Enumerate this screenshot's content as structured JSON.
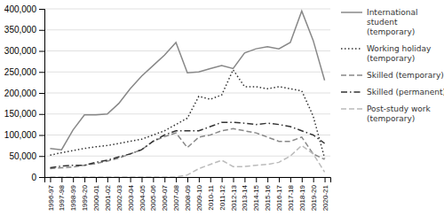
{
  "chart_data": {
    "type": "line",
    "categories": [
      "1996-97",
      "1997-98",
      "1998-99",
      "1999-20",
      "2000-01",
      "2001-02",
      "2002-03",
      "2003-04",
      "2004-05",
      "2005-06",
      "2006-07",
      "2007-08",
      "2008-09",
      "2009-10",
      "2010-11",
      "2011-12",
      "2012-13",
      "2013-14",
      "2014-15",
      "2015-16",
      "2016-17",
      "2017-18",
      "2018-19",
      "2019-20",
      "2020-21"
    ],
    "series": [
      {
        "name": "International\nstudent\n(temporary)",
        "color": "#888888",
        "line_style": "solid",
        "values": [
          68000,
          65000,
          112000,
          148000,
          148000,
          150000,
          175000,
          210000,
          240000,
          265000,
          290000,
          320000,
          248000,
          250000,
          258000,
          265000,
          258000,
          295000,
          305000,
          310000,
          305000,
          320000,
          395000,
          325000,
          230000
        ]
      },
      {
        "name": "Working holiday\n(temporary)",
        "color": "#333333",
        "line_style": "dotted",
        "values": [
          52000,
          58000,
          63000,
          68000,
          72000,
          75000,
          80000,
          85000,
          90000,
          100000,
          110000,
          125000,
          140000,
          192000,
          185000,
          195000,
          255000,
          215000,
          215000,
          210000,
          215000,
          210000,
          205000,
          145000,
          45000
        ]
      },
      {
        "name": "Skilled (temporary)",
        "color": "#888888",
        "line_style": "dashed",
        "values": [
          20000,
          22000,
          24000,
          28000,
          32000,
          38000,
          45000,
          55000,
          65000,
          85000,
          96000,
          105000,
          70000,
          95000,
          100000,
          110000,
          115000,
          110000,
          105000,
          95000,
          85000,
          85000,
          95000,
          55000,
          42000
        ]
      },
      {
        "name": "Skilled (permanent)",
        "color": "#333333",
        "line_style": "dashdot",
        "values": [
          22000,
          26000,
          28000,
          28000,
          35000,
          40000,
          48000,
          55000,
          65000,
          85000,
          100000,
          110000,
          110000,
          110000,
          120000,
          130000,
          130000,
          128000,
          125000,
          128000,
          125000,
          120000,
          110000,
          100000,
          80000
        ]
      },
      {
        "name": "Post-study work\n(temporary)",
        "color": "#bbbbbb",
        "line_style": "dashed",
        "values": [
          0,
          0,
          0,
          0,
          0,
          0,
          0,
          0,
          0,
          0,
          0,
          0,
          5000,
          20000,
          30000,
          40000,
          25000,
          25000,
          28000,
          30000,
          35000,
          50000,
          75000,
          55000,
          12000
        ]
      }
    ],
    "ylim": [
      0,
      400000
    ],
    "yticks": [
      0,
      {
        "value": 50000,
        "label": "50,000"
      },
      {
        "value": 100000,
        "label": "100,000"
      },
      {
        "value": 150000,
        "label": "150,000"
      },
      {
        "value": 200000,
        "label": "200,000"
      },
      {
        "value": 250000,
        "label": "250,000"
      },
      {
        "value": 300000,
        "label": "300,000"
      },
      {
        "value": 350000,
        "label": "350,000"
      },
      {
        "value": 400000,
        "label": "400,000"
      }
    ],
    "grid": true,
    "legend": "right"
  }
}
